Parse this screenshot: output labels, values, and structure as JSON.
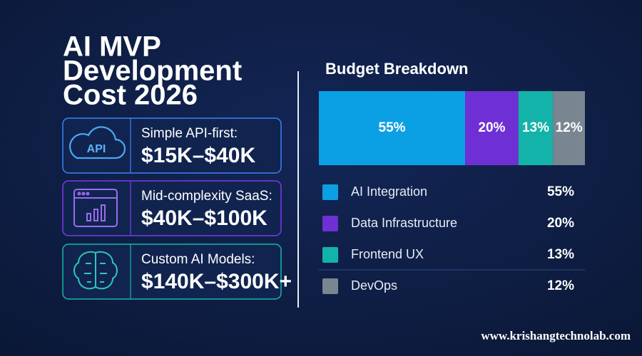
{
  "title_lines": [
    "AI MVP",
    "Development",
    "Cost 2026"
  ],
  "cards": [
    {
      "icon_text": "API",
      "label": "Simple API-first:",
      "price": "$15K–$40K"
    },
    {
      "label": "Mid-complexity SaaS:",
      "price": "$40K–$100K"
    },
    {
      "label": "Custom AI Models:",
      "price": "$140K–$300K+"
    }
  ],
  "chart_data": {
    "type": "bar",
    "title": "Budget Breakdown",
    "stacked": true,
    "orientation": "horizontal",
    "categories": [
      null
    ],
    "series": [
      {
        "name": "AI Integration",
        "color": "#0ba0e3",
        "values": [
          55
        ],
        "value_labels": [
          "55%"
        ]
      },
      {
        "name": "Data Infrastructure",
        "color": "#6e30d4",
        "values": [
          20
        ],
        "value_labels": [
          "20%"
        ]
      },
      {
        "name": "Frontend UX",
        "color": "#14b3aa",
        "values": [
          13
        ],
        "value_labels": [
          "13%"
        ]
      },
      {
        "name": "DevOps",
        "color": "#7a8592",
        "values": [
          12
        ],
        "value_labels": [
          "12%"
        ]
      }
    ]
  },
  "website": "www.krishangtechnolab.com"
}
